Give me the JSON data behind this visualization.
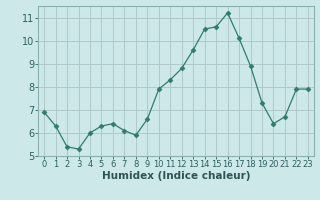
{
  "x": [
    0,
    1,
    2,
    3,
    4,
    5,
    6,
    7,
    8,
    9,
    10,
    11,
    12,
    13,
    14,
    15,
    16,
    17,
    18,
    19,
    20,
    21,
    22,
    23
  ],
  "y": [
    6.9,
    6.3,
    5.4,
    5.3,
    6.0,
    6.3,
    6.4,
    6.1,
    5.9,
    6.6,
    7.9,
    8.3,
    8.8,
    9.6,
    10.5,
    10.6,
    11.2,
    10.1,
    8.9,
    7.3,
    6.4,
    6.7,
    7.9,
    7.9
  ],
  "line_color": "#2d7d6e",
  "marker": "D",
  "marker_size": 2.5,
  "bg_color": "#cde8e8",
  "grid_color": "#b0c8c8",
  "xlabel": "Humidex (Indice chaleur)",
  "ylim": [
    5,
    11.5
  ],
  "xlim": [
    -0.5,
    23.5
  ],
  "yticks": [
    5,
    6,
    7,
    8,
    9,
    10,
    11
  ],
  "xticks": [
    0,
    1,
    2,
    3,
    4,
    5,
    6,
    7,
    8,
    9,
    10,
    11,
    12,
    13,
    14,
    15,
    16,
    17,
    18,
    19,
    20,
    21,
    22,
    23
  ],
  "tick_fontsize": 6.0,
  "xlabel_fontsize": 7.5,
  "ytick_fontsize": 7.0
}
